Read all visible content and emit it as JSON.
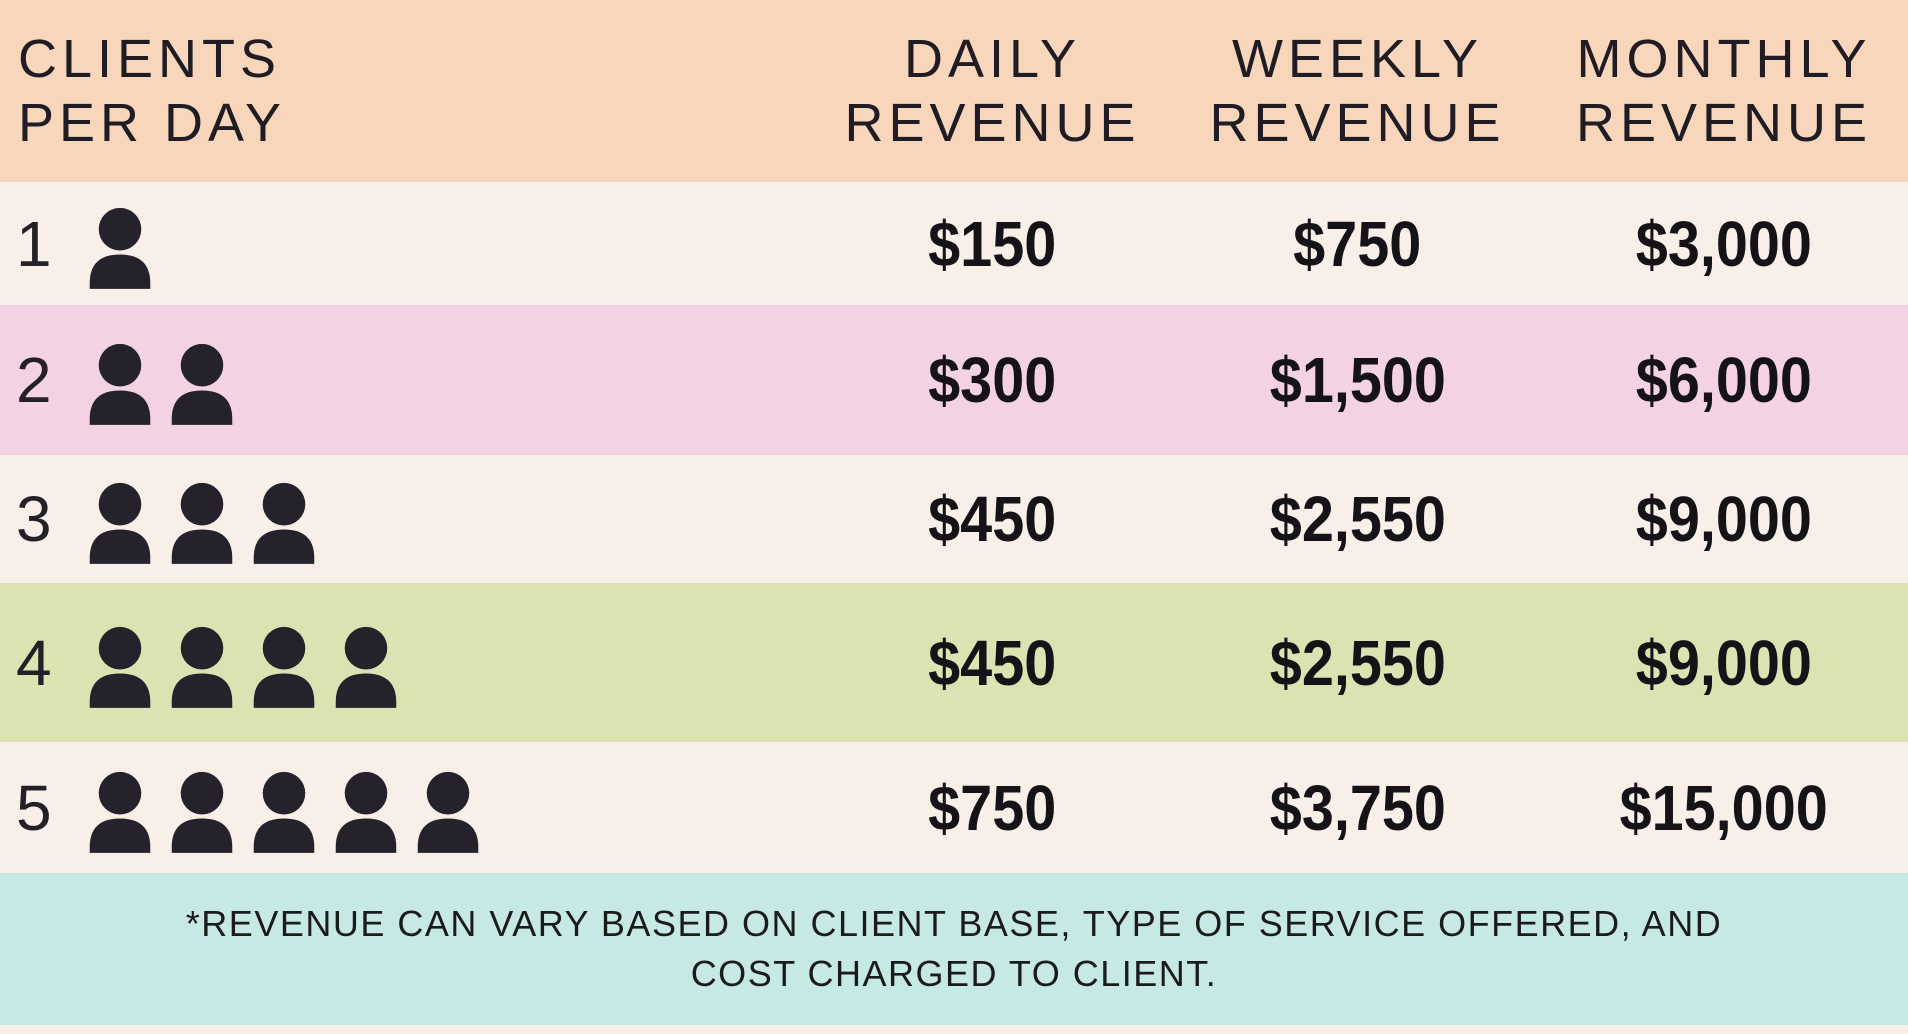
{
  "table": {
    "header": {
      "clients": [
        "CLIENTS",
        "PER DAY"
      ],
      "daily": [
        "DAILY",
        "REVENUE"
      ],
      "weekly": [
        "WEEKLY",
        "REVENUE"
      ],
      "monthly": [
        "MONTHLY",
        "REVENUE"
      ]
    },
    "rows": [
      {
        "clients_per_day": "1",
        "daily": "$150",
        "weekly": "$750",
        "monthly": "$3,000"
      },
      {
        "clients_per_day": "2",
        "daily": "$300",
        "weekly": "$1,500",
        "monthly": "$6,000"
      },
      {
        "clients_per_day": "3",
        "daily": "$450",
        "weekly": "$2,550",
        "monthly": "$9,000"
      },
      {
        "clients_per_day": "4",
        "daily": "$450",
        "weekly": "$2,550",
        "monthly": "$9,000"
      },
      {
        "clients_per_day": "5",
        "daily": "$750",
        "weekly": "$3,750",
        "monthly": "$15,000"
      }
    ]
  },
  "footnote": {
    "line1": "*REVENUE CAN VARY BASED ON CLIENT BASE, TYPE OF SERVICE OFFERED, AND",
    "line2": "COST CHARGED TO CLIENT."
  },
  "icons": {
    "person": "person-icon"
  },
  "colors": {
    "header_bg": "#f8d6bb",
    "row_bg_default": "#f9efe9",
    "row_backgrounds": [
      "#f9efe9",
      "#f3d3e3",
      "#f9efe9",
      "#dce3b2",
      "#f9efe9"
    ],
    "footnote_bg": "#c7e9e6",
    "text_dark": "#201c24",
    "value_text": "#151318",
    "icon_color": "#26222b"
  },
  "chart_data": {
    "type": "table",
    "title": "",
    "columns": [
      "CLIENTS PER DAY",
      "DAILY REVENUE",
      "WEEKLY REVENUE",
      "MONTHLY REVENUE"
    ],
    "categories": [
      1,
      2,
      3,
      4,
      5
    ],
    "series": [
      {
        "name": "DAILY REVENUE",
        "values": [
          150,
          300,
          450,
          450,
          750
        ]
      },
      {
        "name": "WEEKLY REVENUE",
        "values": [
          750,
          1500,
          2550,
          2550,
          3750
        ]
      },
      {
        "name": "MONTHLY REVENUE",
        "values": [
          3000,
          6000,
          9000,
          9000,
          15000
        ]
      }
    ],
    "annotations": [
      "*REVENUE CAN VARY BASED ON CLIENT BASE, TYPE OF SERVICE OFFERED, AND COST CHARGED TO CLIENT."
    ]
  }
}
